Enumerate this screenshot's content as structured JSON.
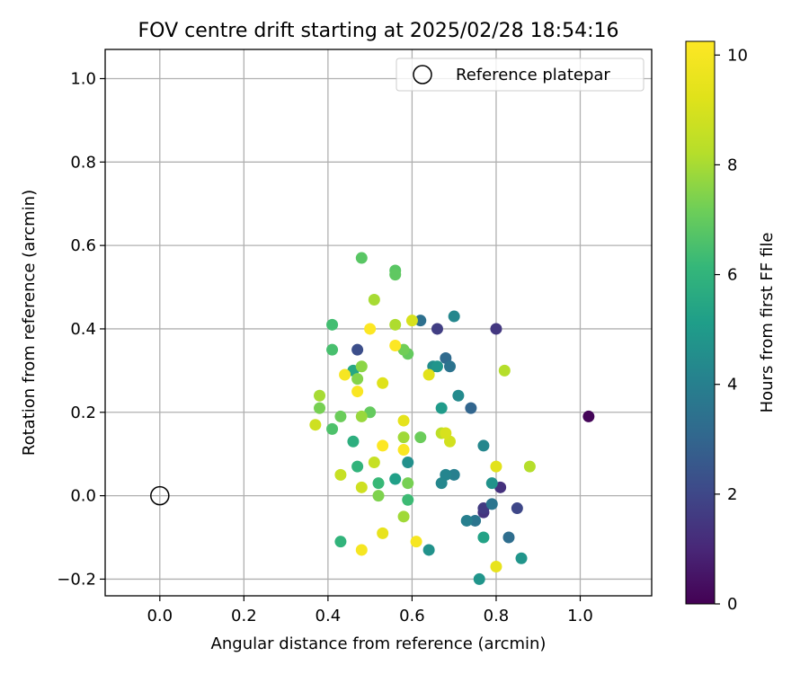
{
  "chart_data": {
    "type": "scatter",
    "title": "FOV centre drift starting at 2025/02/28 18:54:16",
    "xlabel": "Angular distance from reference (arcmin)",
    "ylabel": "Rotation from reference (arcmin)",
    "xlim": [
      -0.13,
      1.17
    ],
    "ylim": [
      -0.24,
      1.07
    ],
    "xticks": [
      0.0,
      0.2,
      0.4,
      0.6,
      0.8,
      1.0
    ],
    "xtick_labels": [
      "0.0",
      "0.2",
      "0.4",
      "0.6",
      "0.8",
      "1.0"
    ],
    "yticks": [
      -0.2,
      0.0,
      0.2,
      0.4,
      0.6,
      0.8,
      1.0
    ],
    "ytick_labels": [
      "−0.2",
      "0.0",
      "0.2",
      "0.4",
      "0.6",
      "0.8",
      "1.0"
    ],
    "grid": true,
    "legend": {
      "placement": "top-right",
      "entries": [
        "Reference platepar"
      ]
    },
    "reference_point": {
      "x": 0.0,
      "y": 0.0
    },
    "colorbar": {
      "label": "Hours from first FF file",
      "colormap": "viridis",
      "range": [
        0,
        10.25
      ],
      "ticks": [
        0,
        2,
        4,
        6,
        8,
        10
      ],
      "tick_labels": [
        "0",
        "2",
        "4",
        "6",
        "8",
        "10"
      ]
    },
    "points": [
      {
        "x": 1.02,
        "y": 0.19,
        "h": 0.1
      },
      {
        "x": 0.8,
        "y": 0.4,
        "h": 1.5
      },
      {
        "x": 0.66,
        "y": 0.4,
        "h": 1.7
      },
      {
        "x": 0.47,
        "y": 0.35,
        "h": 2.2
      },
      {
        "x": 0.77,
        "y": -0.04,
        "h": 1.4
      },
      {
        "x": 0.77,
        "y": -0.03,
        "h": 1.6
      },
      {
        "x": 0.81,
        "y": 0.02,
        "h": 1.3
      },
      {
        "x": 0.85,
        "y": -0.03,
        "h": 2.0
      },
      {
        "x": 0.74,
        "y": 0.21,
        "h": 3.0
      },
      {
        "x": 0.68,
        "y": 0.33,
        "h": 3.2
      },
      {
        "x": 0.62,
        "y": 0.42,
        "h": 3.4
      },
      {
        "x": 0.69,
        "y": 0.31,
        "h": 3.5
      },
      {
        "x": 0.83,
        "y": -0.1,
        "h": 3.3
      },
      {
        "x": 0.75,
        "y": -0.06,
        "h": 3.6
      },
      {
        "x": 0.79,
        "y": -0.02,
        "h": 3.6
      },
      {
        "x": 0.73,
        "y": -0.06,
        "h": 4.0
      },
      {
        "x": 0.7,
        "y": 0.05,
        "h": 4.0
      },
      {
        "x": 0.68,
        "y": 0.05,
        "h": 4.2
      },
      {
        "x": 0.67,
        "y": 0.03,
        "h": 4.3
      },
      {
        "x": 0.77,
        "y": 0.12,
        "h": 4.3
      },
      {
        "x": 0.7,
        "y": 0.43,
        "h": 4.3
      },
      {
        "x": 0.71,
        "y": 0.24,
        "h": 4.4
      },
      {
        "x": 0.65,
        "y": 0.31,
        "h": 4.5
      },
      {
        "x": 0.66,
        "y": 0.31,
        "h": 4.8
      },
      {
        "x": 0.59,
        "y": 0.08,
        "h": 4.6
      },
      {
        "x": 0.64,
        "y": -0.13,
        "h": 4.7
      },
      {
        "x": 0.86,
        "y": -0.15,
        "h": 4.8
      },
      {
        "x": 0.76,
        "y": -0.2,
        "h": 4.8
      },
      {
        "x": 0.79,
        "y": 0.03,
        "h": 4.7
      },
      {
        "x": 0.67,
        "y": 0.21,
        "h": 5.0
      },
      {
        "x": 0.77,
        "y": -0.1,
        "h": 5.3
      },
      {
        "x": 0.56,
        "y": 0.04,
        "h": 5.2
      },
      {
        "x": 0.46,
        "y": 0.3,
        "h": 5.5
      },
      {
        "x": 0.46,
        "y": 0.13,
        "h": 5.8
      },
      {
        "x": 0.47,
        "y": 0.07,
        "h": 6.0
      },
      {
        "x": 0.43,
        "y": -0.11,
        "h": 6.0
      },
      {
        "x": 0.52,
        "y": 0.03,
        "h": 6.2
      },
      {
        "x": 0.59,
        "y": -0.01,
        "h": 6.3
      },
      {
        "x": 0.41,
        "y": 0.41,
        "h": 6.4
      },
      {
        "x": 0.41,
        "y": 0.35,
        "h": 6.5
      },
      {
        "x": 0.41,
        "y": 0.16,
        "h": 6.6
      },
      {
        "x": 0.48,
        "y": 0.57,
        "h": 6.8
      },
      {
        "x": 0.56,
        "y": 0.54,
        "h": 6.8
      },
      {
        "x": 0.56,
        "y": 0.53,
        "h": 6.9
      },
      {
        "x": 0.5,
        "y": 0.2,
        "h": 7.0
      },
      {
        "x": 0.43,
        "y": 0.19,
        "h": 7.1
      },
      {
        "x": 0.59,
        "y": 0.34,
        "h": 7.0
      },
      {
        "x": 0.58,
        "y": 0.35,
        "h": 7.2
      },
      {
        "x": 0.62,
        "y": 0.14,
        "h": 7.1
      },
      {
        "x": 0.38,
        "y": 0.21,
        "h": 7.3
      },
      {
        "x": 0.59,
        "y": 0.03,
        "h": 7.3
      },
      {
        "x": 0.52,
        "y": 0.0,
        "h": 7.4
      },
      {
        "x": 0.47,
        "y": 0.28,
        "h": 7.5
      },
      {
        "x": 0.48,
        "y": 0.31,
        "h": 7.6
      },
      {
        "x": 0.48,
        "y": 0.19,
        "h": 7.8
      },
      {
        "x": 0.58,
        "y": 0.14,
        "h": 7.9
      },
      {
        "x": 0.58,
        "y": -0.05,
        "h": 7.9
      },
      {
        "x": 0.51,
        "y": 0.47,
        "h": 8.0
      },
      {
        "x": 0.38,
        "y": 0.24,
        "h": 8.0
      },
      {
        "x": 0.56,
        "y": 0.41,
        "h": 8.1
      },
      {
        "x": 0.82,
        "y": 0.3,
        "h": 8.2
      },
      {
        "x": 0.88,
        "y": 0.07,
        "h": 8.2
      },
      {
        "x": 0.67,
        "y": 0.15,
        "h": 8.4
      },
      {
        "x": 0.43,
        "y": 0.05,
        "h": 8.6
      },
      {
        "x": 0.51,
        "y": 0.08,
        "h": 8.6
      },
      {
        "x": 0.48,
        "y": 0.02,
        "h": 8.8
      },
      {
        "x": 0.37,
        "y": 0.17,
        "h": 8.8
      },
      {
        "x": 0.69,
        "y": 0.13,
        "h": 8.9
      },
      {
        "x": 0.68,
        "y": 0.15,
        "h": 9.0
      },
      {
        "x": 0.6,
        "y": 0.42,
        "h": 9.0
      },
      {
        "x": 0.53,
        "y": 0.27,
        "h": 9.2
      },
      {
        "x": 0.64,
        "y": 0.29,
        "h": 9.3
      },
      {
        "x": 0.58,
        "y": 0.18,
        "h": 9.4
      },
      {
        "x": 0.53,
        "y": -0.09,
        "h": 9.5
      },
      {
        "x": 0.8,
        "y": 0.07,
        "h": 9.3
      },
      {
        "x": 0.8,
        "y": -0.17,
        "h": 9.5
      },
      {
        "x": 0.48,
        "y": -0.13,
        "h": 10.0
      },
      {
        "x": 0.61,
        "y": -0.11,
        "h": 10.0
      },
      {
        "x": 0.58,
        "y": 0.11,
        "h": 10.1
      },
      {
        "x": 0.53,
        "y": 0.12,
        "h": 10.2
      },
      {
        "x": 0.44,
        "y": 0.29,
        "h": 10.0
      },
      {
        "x": 0.47,
        "y": 0.25,
        "h": 10.1
      },
      {
        "x": 0.5,
        "y": 0.4,
        "h": 10.2
      },
      {
        "x": 0.56,
        "y": 0.36,
        "h": 10.2
      }
    ]
  }
}
